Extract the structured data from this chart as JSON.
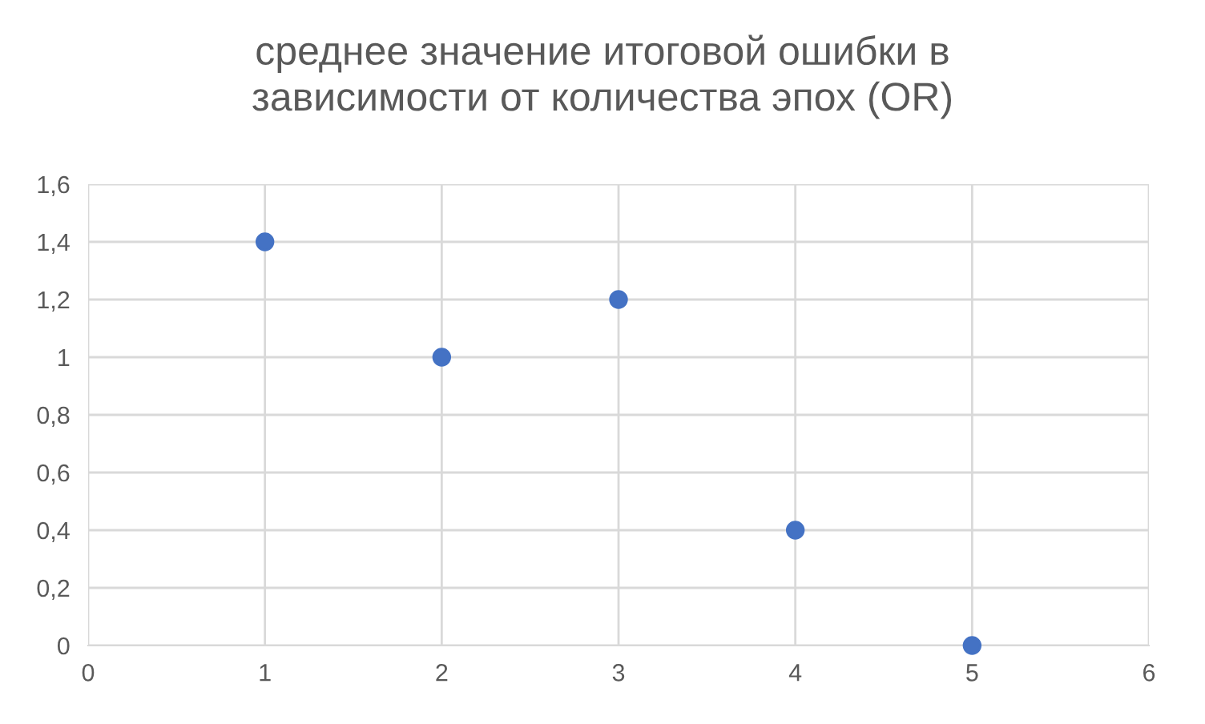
{
  "chart_data": {
    "type": "scatter",
    "title": "среднее значение итоговой ошибки в\nзависимости от количества эпох (OR)",
    "x": [
      1,
      2,
      3,
      4,
      5
    ],
    "series": [
      {
        "color": "#4472c4",
        "values": [
          1.4,
          1.0,
          1.2,
          0.4,
          0
        ]
      }
    ],
    "xlim": [
      0,
      6
    ],
    "xticks": [
      0,
      1,
      2,
      3,
      4,
      5,
      6
    ],
    "ylim": [
      0,
      1.6
    ],
    "yticks": [
      0,
      {
        "value": 0.2,
        "label": "0,2"
      },
      {
        "value": 0.4,
        "label": "0,4"
      },
      {
        "value": 0.6,
        "label": "0,6"
      },
      {
        "value": 0.8,
        "label": "0,8"
      },
      1,
      {
        "value": 1.2,
        "label": "1,2"
      },
      {
        "value": 1.4,
        "label": "1,4"
      },
      {
        "value": 1.6,
        "label": "1,6"
      }
    ],
    "grid": true,
    "marker": "circle"
  }
}
